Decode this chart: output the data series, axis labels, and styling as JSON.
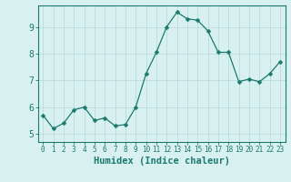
{
  "x": [
    0,
    1,
    2,
    3,
    4,
    5,
    6,
    7,
    8,
    9,
    10,
    11,
    12,
    13,
    14,
    15,
    16,
    17,
    18,
    19,
    20,
    21,
    22,
    23
  ],
  "y": [
    5.7,
    5.2,
    5.4,
    5.9,
    6.0,
    5.5,
    5.6,
    5.3,
    5.35,
    6.0,
    7.25,
    8.05,
    9.0,
    9.55,
    9.3,
    9.25,
    8.85,
    8.05,
    8.05,
    6.95,
    7.05,
    6.95,
    7.25,
    7.7
  ],
  "line_color": "#1a7a6e",
  "marker": "D",
  "marker_size": 2.5,
  "bg_color": "#d9f0f0",
  "grid_color": "#b8dcdc",
  "axis_color": "#1a7a6e",
  "tick_label_color": "#1a7a6e",
  "xlabel": "Humidex (Indice chaleur)",
  "xlabel_color": "#1a7a6e",
  "xlabel_fontsize": 7.5,
  "ylabel_ticks": [
    5,
    6,
    7,
    8,
    9
  ],
  "xlim": [
    -0.5,
    23.5
  ],
  "ylim": [
    4.7,
    9.8
  ],
  "xtick_labels": [
    "0",
    "1",
    "2",
    "3",
    "4",
    "5",
    "6",
    "7",
    "8",
    "9",
    "10",
    "11",
    "12",
    "13",
    "14",
    "15",
    "16",
    "17",
    "18",
    "19",
    "20",
    "21",
    "22",
    "23"
  ],
  "xtick_fontsize": 5.5,
  "ytick_fontsize": 7
}
